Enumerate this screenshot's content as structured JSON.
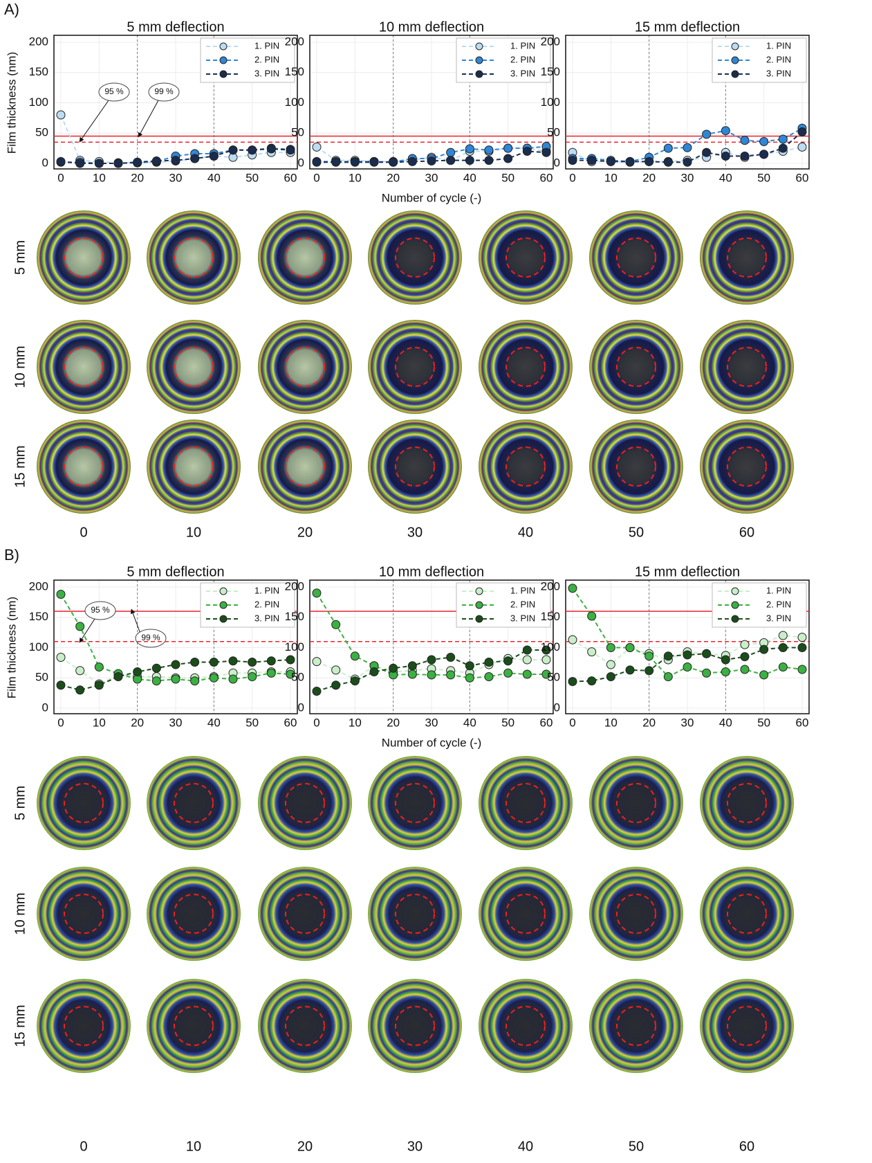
{
  "panels": [
    {
      "label": "A)",
      "row_labels": [
        "5 mm",
        "10 mm",
        "15 mm"
      ],
      "column_labels": [
        0,
        10,
        20,
        30,
        40,
        50,
        60
      ]
    },
    {
      "label": "B)",
      "row_labels": [
        "5 mm",
        "10 mm",
        "15 mm"
      ],
      "column_labels": [
        0,
        10,
        20,
        30,
        40,
        50,
        60
      ]
    }
  ],
  "chart_data": [
    {
      "type": "line",
      "title": "5 mm deflection",
      "ylabel": "Film thickness (nm)",
      "x": [
        0,
        5,
        10,
        15,
        20,
        25,
        30,
        35,
        40,
        45,
        50,
        55,
        60
      ],
      "xlim": [
        0,
        60
      ],
      "xticks": [
        0,
        10,
        20,
        30,
        40,
        50,
        60
      ],
      "ylim": [
        0,
        200
      ],
      "yticks": [
        0,
        50,
        100,
        150,
        200
      ],
      "grid": true,
      "vlines": [
        20,
        40
      ],
      "legend": "upper right",
      "ref_lines": [
        {
          "value": 45,
          "style": "solid",
          "color": "#e8242b",
          "label": "99 %"
        },
        {
          "value": 35,
          "style": "dashed",
          "color": "#e8242b",
          "label": "95 %"
        }
      ],
      "series": [
        {
          "name": "1. PIN",
          "color": "#bcdcf2",
          "values": [
            80,
            5,
            3,
            1,
            1,
            2,
            4,
            8,
            12,
            10,
            14,
            18,
            18
          ]
        },
        {
          "name": "2. PIN",
          "color": "#2f86d6",
          "values": [
            2,
            2,
            0,
            0,
            1,
            3,
            12,
            16,
            16,
            22,
            22,
            25,
            23
          ]
        },
        {
          "name": "3. PIN",
          "color": "#1a2d4f",
          "values": [
            3,
            0,
            0,
            0,
            2,
            4,
            5,
            8,
            12,
            22,
            22,
            24,
            22
          ]
        }
      ]
    },
    {
      "type": "line",
      "title": "10 mm deflection",
      "xlabel": "Number of cycle (-)",
      "x": [
        0,
        5,
        10,
        15,
        20,
        25,
        30,
        35,
        40,
        45,
        50,
        55,
        60
      ],
      "xlim": [
        0,
        60
      ],
      "xticks": [
        0,
        10,
        20,
        30,
        40,
        50,
        60
      ],
      "ylim": [
        0,
        200
      ],
      "yticks": [
        0,
        50,
        100,
        150,
        200
      ],
      "grid": true,
      "vlines": [
        20,
        40
      ],
      "legend": "upper right",
      "ref_lines": [
        {
          "value": 45,
          "style": "solid",
          "color": "#e8242b"
        },
        {
          "value": 35,
          "style": "dashed",
          "color": "#e8242b"
        }
      ],
      "series": [
        {
          "name": "1. PIN",
          "color": "#bcdcf2",
          "values": [
            27,
            5,
            5,
            3,
            3,
            5,
            10,
            5,
            20,
            20,
            25,
            25,
            20
          ]
        },
        {
          "name": "2. PIN",
          "color": "#2f86d6",
          "values": [
            3,
            3,
            3,
            3,
            2,
            8,
            8,
            18,
            24,
            22,
            25,
            25,
            28
          ]
        },
        {
          "name": "3. PIN",
          "color": "#1a2d4f",
          "values": [
            2,
            2,
            2,
            2,
            2,
            3,
            4,
            5,
            5,
            5,
            8,
            20,
            18
          ]
        }
      ]
    },
    {
      "type": "line",
      "title": "15 mm deflection",
      "x": [
        0,
        5,
        10,
        15,
        20,
        25,
        30,
        35,
        40,
        45,
        50,
        55,
        60
      ],
      "xlim": [
        0,
        60
      ],
      "xticks": [
        0,
        10,
        20,
        30,
        40,
        50,
        60
      ],
      "ylim": [
        0,
        200
      ],
      "yticks": [
        0,
        50,
        100,
        150,
        200
      ],
      "grid": true,
      "vlines": [
        20,
        40
      ],
      "legend": "upper right",
      "ref_lines": [
        {
          "value": 45,
          "style": "solid",
          "color": "#e8242b"
        },
        {
          "value": 35,
          "style": "dashed",
          "color": "#e8242b"
        }
      ],
      "series": [
        {
          "name": "1. PIN",
          "color": "#bcdcf2",
          "values": [
            18,
            3,
            3,
            2,
            3,
            3,
            5,
            10,
            18,
            10,
            15,
            20,
            27
          ]
        },
        {
          "name": "2. PIN",
          "color": "#2f86d6",
          "values": [
            8,
            8,
            5,
            3,
            10,
            25,
            26,
            48,
            54,
            38,
            36,
            40,
            58
          ]
        },
        {
          "name": "3. PIN",
          "color": "#1a2d4f",
          "values": [
            5,
            5,
            3,
            3,
            3,
            2,
            2,
            18,
            12,
            12,
            15,
            25,
            52
          ]
        }
      ]
    },
    {
      "type": "line",
      "title": "5 mm deflection",
      "ylabel": "Film thickness (nm)",
      "x": [
        0,
        5,
        10,
        15,
        20,
        25,
        30,
        35,
        40,
        45,
        50,
        55,
        60
      ],
      "xlim": [
        0,
        60
      ],
      "xticks": [
        0,
        10,
        20,
        30,
        40,
        50,
        60
      ],
      "ylim": [
        0,
        200
      ],
      "yticks": [
        0,
        50,
        100,
        150,
        200
      ],
      "grid": true,
      "vlines": [
        20,
        40
      ],
      "legend": "upper right",
      "ref_lines": [
        {
          "value": 160,
          "style": "solid",
          "color": "#e8242b",
          "label": "99 %"
        },
        {
          "value": 110,
          "style": "dashed",
          "color": "#e8242b",
          "label": "95 %"
        }
      ],
      "series": [
        {
          "name": "1. PIN",
          "color": "#c9eec9",
          "values": [
            84,
            62,
            40,
            55,
            52,
            52,
            50,
            50,
            52,
            58,
            58,
            60,
            60
          ]
        },
        {
          "name": "2. PIN",
          "color": "#3cb043",
          "values": [
            188,
            135,
            68,
            57,
            48,
            45,
            48,
            45,
            50,
            48,
            52,
            58,
            56
          ]
        },
        {
          "name": "3. PIN",
          "color": "#1b4d1b",
          "values": [
            38,
            30,
            38,
            52,
            60,
            66,
            72,
            76,
            76,
            78,
            76,
            78,
            80
          ]
        }
      ]
    },
    {
      "type": "line",
      "title": "10 mm deflection",
      "xlabel": "Number of cycle (-)",
      "x": [
        0,
        5,
        10,
        15,
        20,
        25,
        30,
        35,
        40,
        45,
        50,
        55,
        60
      ],
      "xlim": [
        0,
        60
      ],
      "xticks": [
        0,
        10,
        20,
        30,
        40,
        50,
        60
      ],
      "ylim": [
        0,
        200
      ],
      "yticks": [
        0,
        50,
        100,
        150,
        200
      ],
      "grid": true,
      "vlines": [
        20,
        40
      ],
      "legend": "upper right",
      "ref_lines": [
        {
          "value": 160,
          "style": "solid",
          "color": "#e8242b"
        },
        {
          "value": 110,
          "style": "dashed",
          "color": "#e8242b"
        }
      ],
      "series": [
        {
          "name": "1. PIN",
          "color": "#c9eec9",
          "values": [
            77,
            63,
            48,
            70,
            60,
            62,
            65,
            62,
            58,
            72,
            82,
            80,
            80
          ]
        },
        {
          "name": "2. PIN",
          "color": "#3cb043",
          "values": [
            190,
            138,
            86,
            70,
            55,
            56,
            55,
            55,
            50,
            52,
            58,
            56,
            56
          ]
        },
        {
          "name": "3. PIN",
          "color": "#1b4d1b",
          "values": [
            28,
            38,
            45,
            60,
            66,
            70,
            80,
            84,
            70,
            76,
            78,
            96,
            96
          ]
        }
      ]
    },
    {
      "type": "line",
      "title": "15 mm deflection",
      "x": [
        0,
        5,
        10,
        15,
        20,
        25,
        30,
        35,
        40,
        45,
        50,
        55,
        60
      ],
      "xlim": [
        0,
        60
      ],
      "xticks": [
        0,
        10,
        20,
        30,
        40,
        50,
        60
      ],
      "ylim": [
        0,
        200
      ],
      "yticks": [
        0,
        50,
        100,
        150,
        200
      ],
      "grid": true,
      "vlines": [
        20,
        40
      ],
      "legend": "upper right",
      "ref_lines": [
        {
          "value": 160,
          "style": "solid",
          "color": "#e8242b"
        },
        {
          "value": 110,
          "style": "dashed",
          "color": "#e8242b"
        }
      ],
      "series": [
        {
          "name": "1. PIN",
          "color": "#c9eec9",
          "values": [
            113,
            93,
            72,
            100,
            90,
            80,
            93,
            90,
            87,
            105,
            108,
            120,
            117
          ]
        },
        {
          "name": "2. PIN",
          "color": "#3cb043",
          "values": [
            198,
            152,
            100,
            100,
            86,
            52,
            68,
            58,
            60,
            64,
            55,
            68,
            64
          ]
        },
        {
          "name": "3. PIN",
          "color": "#1b4d1b",
          "values": [
            44,
            45,
            52,
            63,
            62,
            86,
            88,
            90,
            80,
            85,
            97,
            100,
            100
          ]
        }
      ]
    }
  ]
}
